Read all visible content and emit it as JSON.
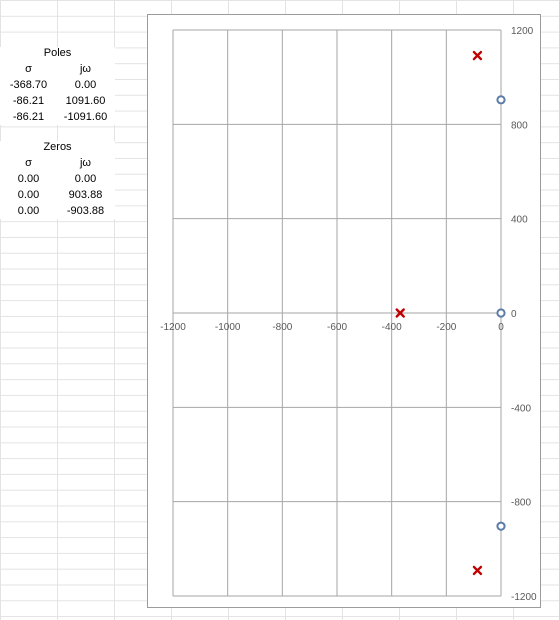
{
  "poles_table": {
    "title": "Poles",
    "col_sigma": "σ",
    "col_jw": "jω",
    "rows": [
      [
        "-368.70",
        "0.00"
      ],
      [
        "-86.21",
        "1091.60"
      ],
      [
        "-86.21",
        "-1091.60"
      ]
    ]
  },
  "zeros_table": {
    "title": "Zeros",
    "col_sigma": "σ",
    "col_jw": "jω",
    "rows": [
      [
        "0.00",
        "0.00"
      ],
      [
        "0.00",
        "903.88"
      ],
      [
        "0.00",
        "-903.88"
      ]
    ]
  },
  "chart_data": {
    "type": "scatter",
    "xlim": [
      -1200,
      0
    ],
    "ylim": [
      -1200,
      1200
    ],
    "x_ticks": [
      "-1200",
      "-1000",
      "-800",
      "-600",
      "-400",
      "-200",
      "0"
    ],
    "y_ticks": [
      "1200",
      "800",
      "400",
      "0",
      "-400",
      "-800",
      "-1200"
    ],
    "grid": true,
    "series": [
      {
        "marker": "x",
        "color": "#c00000",
        "x": [
          -368.7,
          -86.21,
          -86.21
        ],
        "y": [
          0,
          1091.6,
          -1091.6
        ]
      },
      {
        "marker": "o",
        "color": "#5b7ba8",
        "x": [
          0,
          0,
          0
        ],
        "y": [
          0,
          903.88,
          -903.88
        ]
      }
    ]
  }
}
